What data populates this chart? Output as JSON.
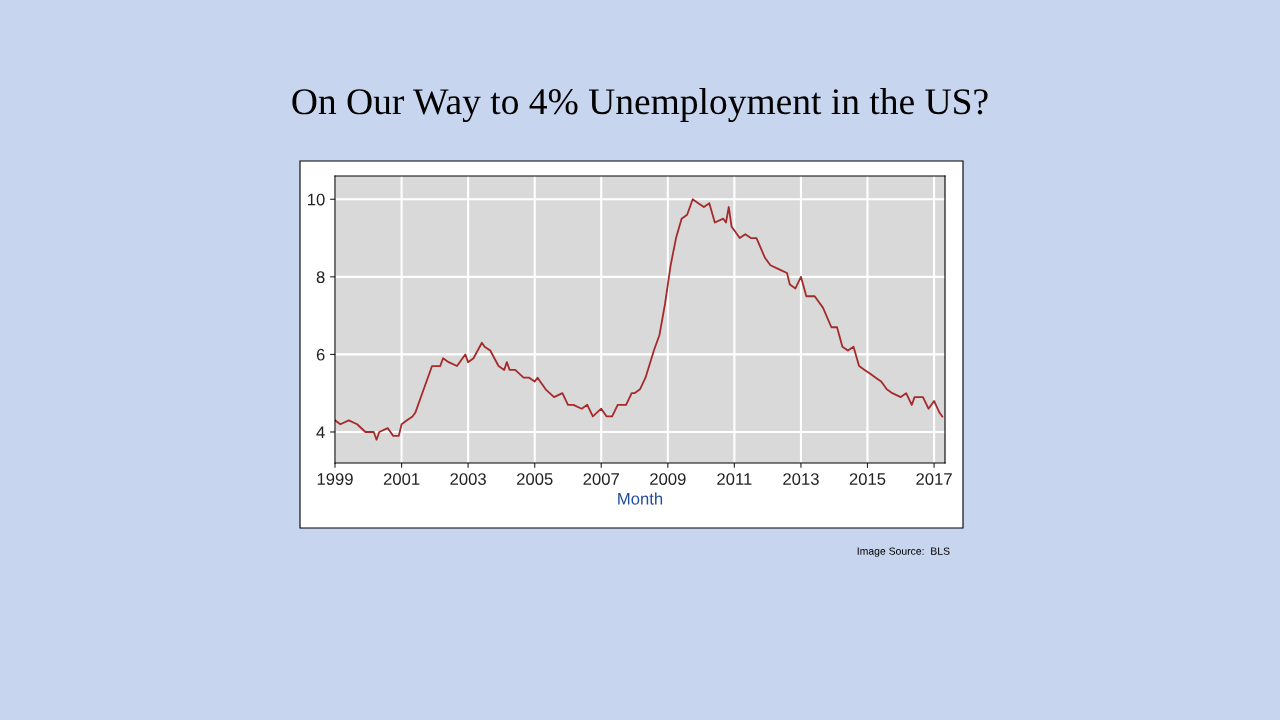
{
  "chart_data": {
    "type": "line",
    "title": "On Our Way to 4% Unemployment in the US?",
    "xlabel": "Month",
    "annotations": [
      "Image Source:  BLS"
    ],
    "x": [
      "1999-01",
      "1999-03",
      "1999-06",
      "1999-09",
      "1999-12",
      "2000-03",
      "2000-04",
      "2000-05",
      "2000-08",
      "2000-10",
      "2000-12",
      "2001-01",
      "2001-03",
      "2001-05",
      "2001-06",
      "2001-08",
      "2001-10",
      "2001-12",
      "2002-03",
      "2002-04",
      "2002-06",
      "2002-09",
      "2002-11",
      "2002-12",
      "2003-01",
      "2003-03",
      "2003-06",
      "2003-07",
      "2003-09",
      "2003-12",
      "2004-02",
      "2004-03",
      "2004-04",
      "2004-06",
      "2004-09",
      "2004-11",
      "2005-01",
      "2005-02",
      "2005-05",
      "2005-08",
      "2005-11",
      "2006-01",
      "2006-03",
      "2006-06",
      "2006-08",
      "2006-10",
      "2007-01",
      "2007-03",
      "2007-05",
      "2007-07",
      "2007-10",
      "2007-12",
      "2008-01",
      "2008-03",
      "2008-05",
      "2008-08",
      "2008-10",
      "2008-12",
      "2009-02",
      "2009-04",
      "2009-06",
      "2009-08",
      "2009-10",
      "2009-12",
      "2010-02",
      "2010-04",
      "2010-06",
      "2010-09",
      "2010-10",
      "2010-11",
      "2010-12",
      "2011-03",
      "2011-05",
      "2011-07",
      "2011-09",
      "2011-12",
      "2012-02",
      "2012-05",
      "2012-08",
      "2012-09",
      "2012-11",
      "2013-01",
      "2013-03",
      "2013-06",
      "2013-09",
      "2013-12",
      "2014-02",
      "2014-04",
      "2014-06",
      "2014-08",
      "2014-10",
      "2014-12",
      "2015-02",
      "2015-04",
      "2015-06",
      "2015-08",
      "2015-10",
      "2016-01",
      "2016-03",
      "2016-05",
      "2016-06",
      "2016-09",
      "2016-11",
      "2017-01",
      "2017-03",
      "2017-04"
    ],
    "series": [
      {
        "color": "#a52a2a",
        "values": [
          4.3,
          4.2,
          4.3,
          4.2,
          4.0,
          4.0,
          3.8,
          4.0,
          4.1,
          3.9,
          3.9,
          4.2,
          4.3,
          4.4,
          4.5,
          4.9,
          5.3,
          5.7,
          5.7,
          5.9,
          5.8,
          5.7,
          5.9,
          6.0,
          5.8,
          5.9,
          6.3,
          6.2,
          6.1,
          5.7,
          5.6,
          5.8,
          5.6,
          5.6,
          5.4,
          5.4,
          5.3,
          5.4,
          5.1,
          4.9,
          5.0,
          4.7,
          4.7,
          4.6,
          4.7,
          4.4,
          4.6,
          4.4,
          4.4,
          4.7,
          4.7,
          5.0,
          5.0,
          5.1,
          5.4,
          6.1,
          6.5,
          7.3,
          8.3,
          9.0,
          9.5,
          9.6,
          10.0,
          9.9,
          9.8,
          9.9,
          9.4,
          9.5,
          9.4,
          9.8,
          9.3,
          9.0,
          9.1,
          9.0,
          9.0,
          8.5,
          8.3,
          8.2,
          8.1,
          7.8,
          7.7,
          8.0,
          7.5,
          7.5,
          7.2,
          6.7,
          6.7,
          6.2,
          6.1,
          6.2,
          5.7,
          5.6,
          5.5,
          5.4,
          5.3,
          5.1,
          5.0,
          4.9,
          5.0,
          4.7,
          4.9,
          4.9,
          4.6,
          4.8,
          4.5,
          4.4
        ]
      }
    ],
    "xlim": [
      "1999-01",
      "2017-05"
    ],
    "xticks": [
      "1999",
      "2001",
      "2003",
      "2005",
      "2007",
      "2009",
      "2011",
      "2013",
      "2015",
      "2017"
    ],
    "ylim": [
      3.2,
      10.6
    ],
    "yticks": [
      4,
      6,
      8,
      10
    ],
    "grid": true,
    "legend": false,
    "marker": "none",
    "line_style": "solid"
  }
}
